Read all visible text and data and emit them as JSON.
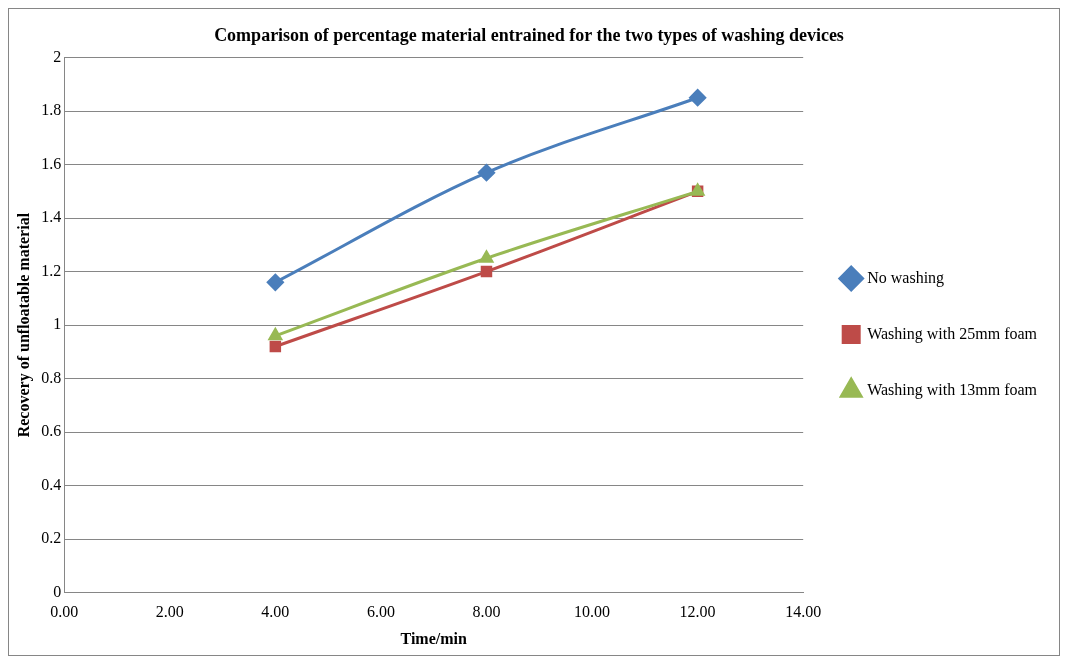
{
  "chart_data": {
    "type": "line",
    "title": "Comparison of percentage material entrained for the two types of washing devices",
    "xlabel": "Time/min",
    "ylabel": "Recovery of unfloatable material",
    "x": [
      4,
      8,
      12
    ],
    "series": [
      {
        "name": "No washing",
        "color": "#4a7ebb",
        "values": [
          1.16,
          1.57,
          1.85
        ],
        "marker": "diamond"
      },
      {
        "name": "Washing with 25mm foam",
        "color": "#be4b48",
        "values": [
          0.92,
          1.2,
          1.5
        ],
        "marker": "square"
      },
      {
        "name": "Washing with 13mm foam",
        "color": "#98b954",
        "values": [
          0.96,
          1.25,
          1.5
        ],
        "marker": "triangle"
      }
    ],
    "xlim": [
      0,
      14
    ],
    "xticks": [
      {
        "value": 0,
        "label": "0.00"
      },
      {
        "value": 2,
        "label": "2.00"
      },
      {
        "value": 4,
        "label": "4.00"
      },
      {
        "value": 6,
        "label": "6.00"
      },
      {
        "value": 8,
        "label": "8.00"
      },
      {
        "value": 10,
        "label": "10.00"
      },
      {
        "value": 12,
        "label": "12.00"
      },
      {
        "value": 14,
        "label": "14.00"
      }
    ],
    "ylim": [
      0,
      2
    ],
    "yticks": [
      0,
      0.2,
      0.4,
      0.6,
      0.8,
      1,
      1.2,
      1.4,
      1.6,
      1.8,
      2
    ],
    "grid": "y",
    "legend": "right"
  }
}
